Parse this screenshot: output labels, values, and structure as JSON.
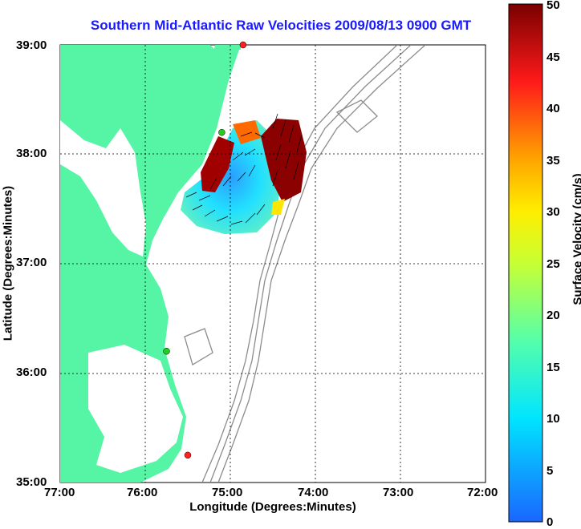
{
  "title": "Southern Mid-Atlantic Raw Velocities 2009/08/13 0900 GMT",
  "axes": {
    "xlabel": "Longitude (Degrees:Minutes)",
    "ylabel": "Latitude (Degrees:Minutes)",
    "x_ticks": [
      "77:00",
      "76:00",
      "75:00",
      "74:00",
      "73:00",
      "72:00"
    ],
    "y_ticks": [
      "39:00",
      "38:00",
      "37:00",
      "36:00",
      "35:00"
    ]
  },
  "colorbar": {
    "label": "Surface Velocity (cm/s)",
    "ticks": [
      "0",
      "5",
      "10",
      "15",
      "20",
      "25",
      "30",
      "35",
      "40",
      "45",
      "50"
    ],
    "min": 0,
    "max": 50
  },
  "colors": {
    "land": "#55f5a5",
    "title": "#1a1aff",
    "bathymetry": "#8c8c8c",
    "station_on": "#22cc22",
    "station_off": "#ff2020"
  },
  "chart_data": {
    "type": "heatmap",
    "xlim": [
      -77,
      -72
    ],
    "ylim": [
      35,
      39
    ],
    "grid": true,
    "stations": [
      {
        "lon": -74.85,
        "lat": 39.0,
        "status": "off"
      },
      {
        "lon": -75.1,
        "lat": 38.2,
        "status": "on"
      },
      {
        "lon": -75.75,
        "lat": 36.2,
        "status": "on"
      },
      {
        "lon": -75.5,
        "lat": 35.25,
        "status": "off"
      }
    ]
  }
}
